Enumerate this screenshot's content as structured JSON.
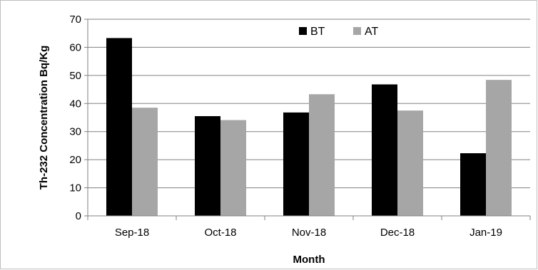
{
  "chart_data": {
    "type": "bar",
    "categories": [
      "Sep-18",
      "Oct-18",
      "Nov-18",
      "Dec-18",
      "Jan-19"
    ],
    "series": [
      {
        "name": "BT",
        "color": "#000000",
        "values": [
          63.3,
          35.5,
          36.8,
          46.8,
          22.3
        ]
      },
      {
        "name": "AT",
        "color": "#a6a6a6",
        "values": [
          38.5,
          34.1,
          43.3,
          37.5,
          48.4
        ]
      }
    ],
    "title": "",
    "xlabel": "Month",
    "ylabel": "Th-232 Concentration Bq/Kg",
    "ylim": [
      0,
      70
    ],
    "yticks": [
      0,
      10,
      20,
      30,
      40,
      50,
      60,
      70
    ],
    "grid": true,
    "legend_position": "top-center"
  }
}
